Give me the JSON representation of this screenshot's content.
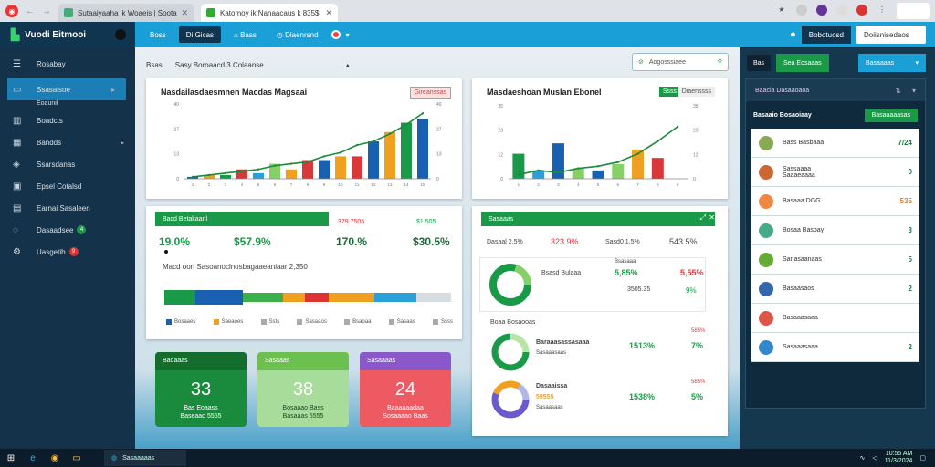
{
  "browser": {
    "tabs": [
      {
        "label": "Sutaaiyaaha ik Woaeis | Sootarna"
      },
      {
        "label": "Katomoy ik Nanaacaus k 835$"
      }
    ]
  },
  "app": {
    "brand": "Vuodi Eitmooi",
    "topnav": [
      "Boss",
      "Di Gicas",
      "Bass",
      "Diaenrsnd"
    ],
    "topright": [
      "Bobotuosd",
      "Doiisnisedaos"
    ]
  },
  "sidebar": {
    "items": [
      {
        "label": "Rosabay",
        "icon": "menu-icon"
      },
      {
        "label": "Ssasaisoe",
        "icon": "monitor-icon",
        "sub": "Eoaunil"
      },
      {
        "label": "Boadcts",
        "icon": "building-icon"
      },
      {
        "label": "Bandds",
        "icon": "calendar-icon"
      },
      {
        "label": "Ssarsdanas",
        "icon": "tag-icon"
      },
      {
        "label": "Epsel Cotalsd",
        "icon": "grid-icon"
      },
      {
        "label": "Earnai Sasaleen",
        "icon": "table-icon"
      },
      {
        "label": "Dasaadsee",
        "icon": "headset-icon",
        "badge": "4"
      },
      {
        "label": "Uasgetib",
        "icon": "gear-icon",
        "badge": "9"
      }
    ]
  },
  "main": {
    "breadcrumb": {
      "home": "Bsas",
      "path": "Sasy Boroaacd 3 Colaanse"
    },
    "search": {
      "placeholder": "Aogosssiaee"
    },
    "card1": {
      "title": "Nasdailasdaesmnen Macdas Magsaai",
      "pill": "Gireanssas"
    },
    "card2": {
      "title": "Masdaeshoan Muslan Ebonel",
      "pills": [
        "Ssss",
        "Diaenssss"
      ]
    },
    "card3": {
      "bar": "Bacd Betakaanl",
      "stats": [
        "19.0%",
        "$57.9%",
        "170.%",
        "$30.5%"
      ],
      "minis": [
        "379.7505",
        "$1.505"
      ],
      "subtitle": "Macd oon Sasoanoclnosbagaaeaniaar 2,350",
      "legend": [
        "Bosaaes",
        "Saeaoes",
        "Ssts",
        "Sasaaos",
        "Bsaoaa",
        "Sasaas",
        "Ssss"
      ]
    },
    "card4": {
      "bar": "Sasaaas",
      "top": [
        "Dasaal 2.5%",
        "323.9%",
        "Sasd0 1.5%",
        "543.5%"
      ],
      "donut1": {
        "label": "Bsasd Bulaaa",
        "vals": [
          "Bsasaaa",
          "5,85%",
          "3,63%",
          "5,55%"
        ],
        "sub": "3505.35",
        "pct": "9%"
      },
      "section": "Boaa Bosaooas",
      "donut2": {
        "label": "Baraaasassasaaa",
        "sub": "Sasaaasaas",
        "top": "585%",
        "v1": "1513%",
        "v2": "7%"
      },
      "donut3": {
        "label": "Dasaaissa",
        "sub2": "59555",
        "sub": "Sasaasaas",
        "top": "585%",
        "v1": "1538%",
        "v2": "5%"
      }
    },
    "tiles": [
      {
        "head": "Badaaas",
        "value": "33",
        "label1": "Bas Eoaass",
        "label2": "Baseaao 5555"
      },
      {
        "head": "Sasaaas",
        "value": "38",
        "label1": "Bosaaao Bass",
        "label2": "Basaaas 5555"
      },
      {
        "head": "Sasaaaas",
        "value": "24",
        "label1": "Baaaaaadaa",
        "label2": "Sosaaaao Baas"
      }
    ]
  },
  "right": {
    "top": [
      "Bas",
      "Sea Eosaaas",
      "Basaaaas"
    ],
    "head": "Baacla Dasaaoaoa",
    "subtitle": "Basaaio Bosaoiaay",
    "button": "Basaaaaasas",
    "rows": [
      {
        "label": "Bass Basbaaa",
        "value": "7/24"
      },
      {
        "label": "Sassaaaa\nSaaaeaaaa",
        "value": "0"
      },
      {
        "label": "Basaaa DGG",
        "value": "535"
      },
      {
        "label": "Bosaa Basbay",
        "value": "3"
      },
      {
        "label": "Sanasaanaas",
        "value": "5"
      },
      {
        "label": "Basaasaos",
        "value": "2"
      },
      {
        "label": "Basaaasaaa",
        "value": ""
      },
      {
        "label": "Sasaaasaaa",
        "value": "2"
      }
    ]
  },
  "taskbar": {
    "app": "Sasaaaaas",
    "time": "10:55 AM",
    "date": "11/3/2024"
  },
  "chart_data": [
    {
      "type": "bar",
      "categories": [
        "1",
        "2",
        "3",
        "4",
        "5",
        "6",
        "7",
        "8",
        "9",
        "10",
        "11",
        "12",
        "13",
        "14",
        "15"
      ],
      "values": [
        1,
        2,
        2,
        5,
        3,
        8,
        5,
        10,
        10,
        12,
        12,
        20,
        25,
        30,
        32
      ],
      "line": [
        1,
        2,
        3,
        4,
        5,
        7,
        8,
        9,
        12,
        14,
        18,
        20,
        24,
        29,
        35
      ],
      "ylim": [
        0,
        40
      ]
    },
    {
      "type": "bar",
      "categories": [
        "1",
        "2",
        "3",
        "4",
        "5",
        "6",
        "7",
        "8",
        "9"
      ],
      "values": [
        12,
        4,
        17,
        5,
        4,
        7,
        14,
        10,
        0
      ],
      "line": [
        2,
        4,
        3,
        5,
        6,
        8,
        12,
        18,
        25
      ],
      "ylim": [
        0,
        35
      ]
    }
  ]
}
